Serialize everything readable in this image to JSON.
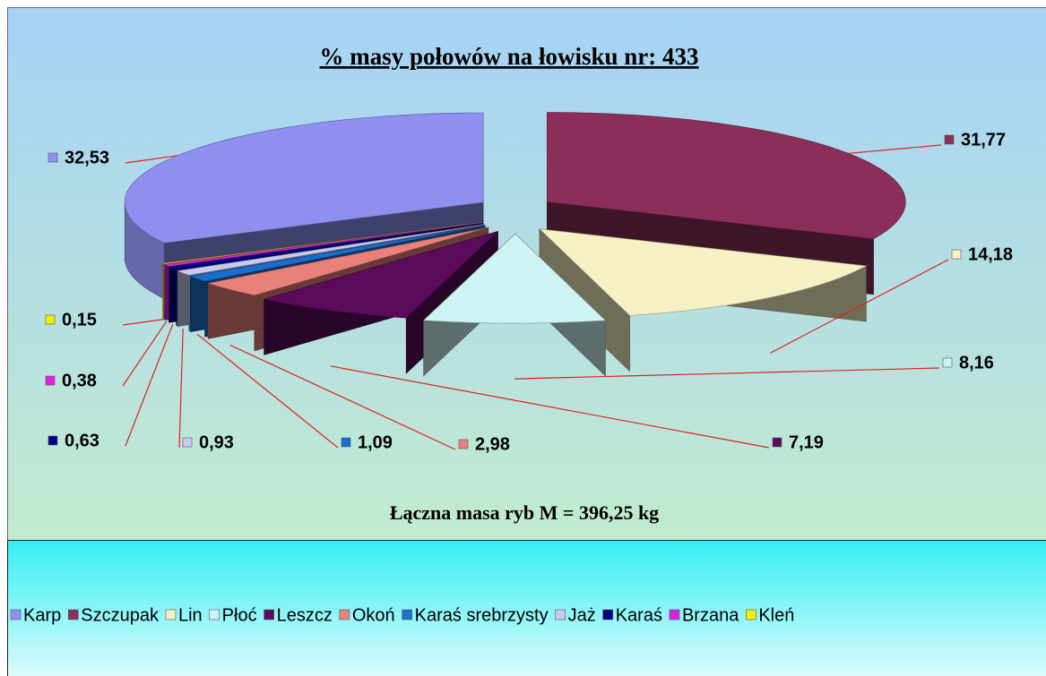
{
  "chart_data": {
    "type": "pie3d",
    "title": "% masy połowów na łowisku nr:  433",
    "subtitle": "Łączna masa ryb M = 396,25 kg",
    "categories": [
      "Karp",
      "Szczupak",
      "Lin",
      "Płoć",
      "Leszcz",
      "Okoń",
      "Karaś srebrzysty",
      "Jaż",
      "Karaś",
      "Brzana",
      "Kleń"
    ],
    "values": [
      32.53,
      31.77,
      14.18,
      8.16,
      7.19,
      2.98,
      1.09,
      0.93,
      0.63,
      0.38,
      0.15
    ],
    "value_labels": [
      "32,53",
      "31,77",
      "14,18",
      "8,16",
      "7,19",
      "2,98",
      "1,09",
      "0,93",
      "0,63",
      "0,38",
      "0,15"
    ],
    "colors": [
      "#8f8fef",
      "#8b2f5a",
      "#f6f1c4",
      "#cdf3f3",
      "#5c0a5c",
      "#ea807a",
      "#1a6fce",
      "#c9c9f0",
      "#000080",
      "#e020e0",
      "#f0f000"
    ],
    "legend": "bottom"
  }
}
